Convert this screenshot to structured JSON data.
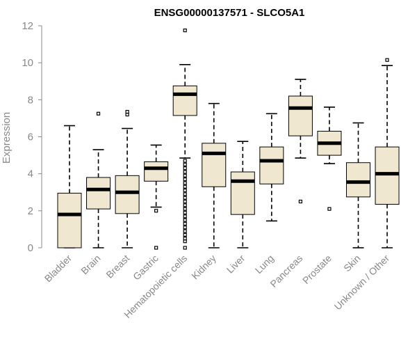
{
  "chart_data": {
    "type": "boxplot",
    "title": "ENSG00000137571 - SLCO5A1",
    "xlabel": "",
    "ylabel": "Expression",
    "ylim": [
      0,
      12
    ],
    "yticks": [
      0,
      2,
      4,
      6,
      8,
      10,
      12
    ],
    "box_color": "#efe7cf",
    "categories": [
      "Bladder",
      "Brain",
      "Breast",
      "Gastric",
      "Hematopoietic cells",
      "Kidney",
      "Liver",
      "Lung",
      "Pancreas",
      "Prostate",
      "Skin",
      "Unknown / Other"
    ],
    "series": [
      {
        "name": "Bladder",
        "min": 0.0,
        "q1": 0.0,
        "median": 1.8,
        "q3": 2.95,
        "max": 6.6,
        "outliers": []
      },
      {
        "name": "Brain",
        "min": 0.0,
        "q1": 2.1,
        "median": 3.15,
        "q3": 3.8,
        "max": 5.3,
        "outliers": [
          7.25
        ]
      },
      {
        "name": "Breast",
        "min": 0.0,
        "q1": 1.85,
        "median": 3.0,
        "q3": 3.9,
        "max": 6.45,
        "outliers": [
          7.2,
          7.35
        ]
      },
      {
        "name": "Gastric",
        "min": 2.2,
        "q1": 3.6,
        "median": 4.3,
        "q3": 4.65,
        "max": 5.55,
        "outliers": [
          0.0,
          2.0
        ]
      },
      {
        "name": "Hematopoietic cells",
        "min": 4.85,
        "q1": 7.15,
        "median": 8.3,
        "q3": 8.75,
        "max": 9.9,
        "outliers": [
          11.75,
          4.7,
          4.5,
          4.3,
          4.1,
          3.9,
          3.7,
          3.5,
          3.3,
          3.1,
          2.9,
          2.7,
          2.5,
          2.3,
          2.1,
          1.9,
          1.7,
          1.5,
          1.3,
          1.1,
          0.9,
          0.7,
          0.5,
          0.35,
          0.0
        ]
      },
      {
        "name": "Kidney",
        "min": 0.0,
        "q1": 3.3,
        "median": 5.1,
        "q3": 5.65,
        "max": 7.8,
        "outliers": []
      },
      {
        "name": "Liver",
        "min": 0.0,
        "q1": 1.8,
        "median": 3.6,
        "q3": 4.1,
        "max": 5.75,
        "outliers": []
      },
      {
        "name": "Lung",
        "min": 1.45,
        "q1": 3.45,
        "median": 4.7,
        "q3": 5.45,
        "max": 7.25,
        "outliers": []
      },
      {
        "name": "Pancreas",
        "min": 4.85,
        "q1": 6.05,
        "median": 7.55,
        "q3": 8.2,
        "max": 9.1,
        "outliers": [
          2.5
        ]
      },
      {
        "name": "Prostate",
        "min": 4.55,
        "q1": 5.0,
        "median": 5.65,
        "q3": 6.3,
        "max": 7.6,
        "outliers": [
          2.1
        ]
      },
      {
        "name": "Skin",
        "min": 0.0,
        "q1": 2.75,
        "median": 3.55,
        "q3": 4.6,
        "max": 6.75,
        "outliers": []
      },
      {
        "name": "Unknown / Other",
        "min": 0.0,
        "q1": 2.35,
        "median": 4.0,
        "q3": 5.45,
        "max": 9.85,
        "outliers": [
          10.15
        ]
      }
    ]
  }
}
